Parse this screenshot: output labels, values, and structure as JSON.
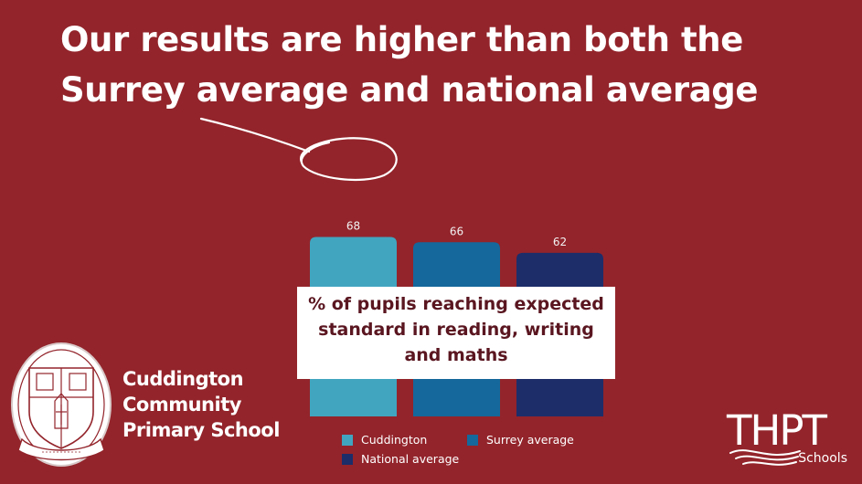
{
  "headline": "Our results are higher than both the Surrey average and national average",
  "chart_data": {
    "type": "bar",
    "categories": [
      "Cuddington",
      "Surrey average",
      "National average"
    ],
    "values": [
      68,
      66,
      62
    ],
    "colors": [
      "#41a5c0",
      "#15689b",
      "#1c2d6a"
    ],
    "ylim": [
      0,
      100
    ],
    "grid": false,
    "data_labels": true,
    "legend_position": "bottom"
  },
  "caption": {
    "lines": [
      "% of pupils reaching expected",
      "standard in reading, writing",
      "and maths"
    ]
  },
  "legend": {
    "items": [
      {
        "label": "Cuddington",
        "color": "#41a5c0"
      },
      {
        "label": "Surrey average",
        "color": "#15689b"
      },
      {
        "label": "National average",
        "color": "#1c2d6a"
      }
    ]
  },
  "school": {
    "name_lines": [
      "Cuddington",
      "Community",
      "Primary School"
    ],
    "crest_icon": "school-crest-icon"
  },
  "brand": {
    "word": "THPT",
    "sub": "Schools"
  },
  "colors": {
    "background": "#93242b",
    "caption_text": "#5a1620"
  }
}
